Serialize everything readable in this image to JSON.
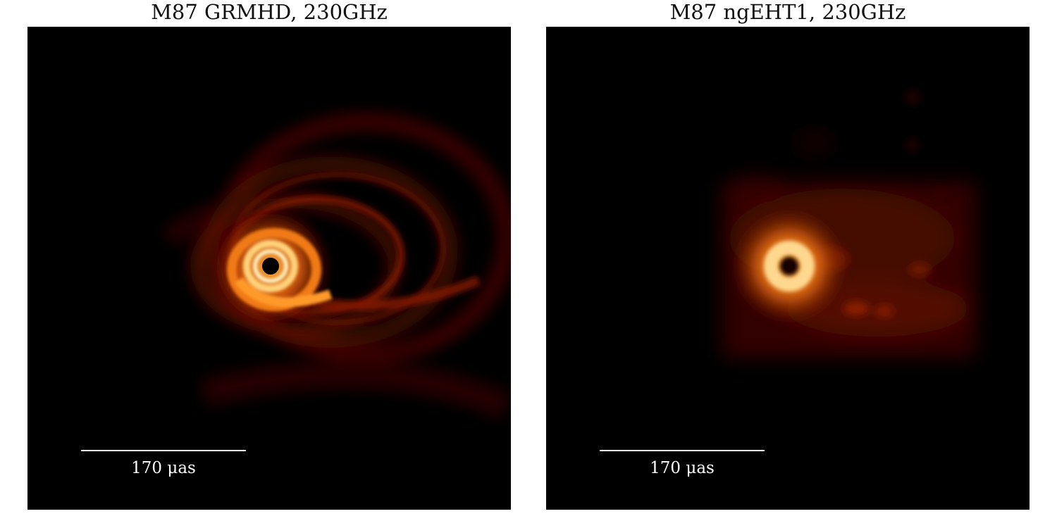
{
  "panels": [
    {
      "title": "M87 GRMHD, 230GHz",
      "scale_label": "170 μas"
    },
    {
      "title": "M87 ngEHT1, 230GHz",
      "scale_label": "170 μas"
    }
  ],
  "colors": {
    "background": "#000000",
    "emission_core": "#fff4c8",
    "emission_mid": "#ff9a1e",
    "emission_outer": "#8c1a00",
    "shadow": "#000000",
    "scalebar": "#ffffff"
  }
}
